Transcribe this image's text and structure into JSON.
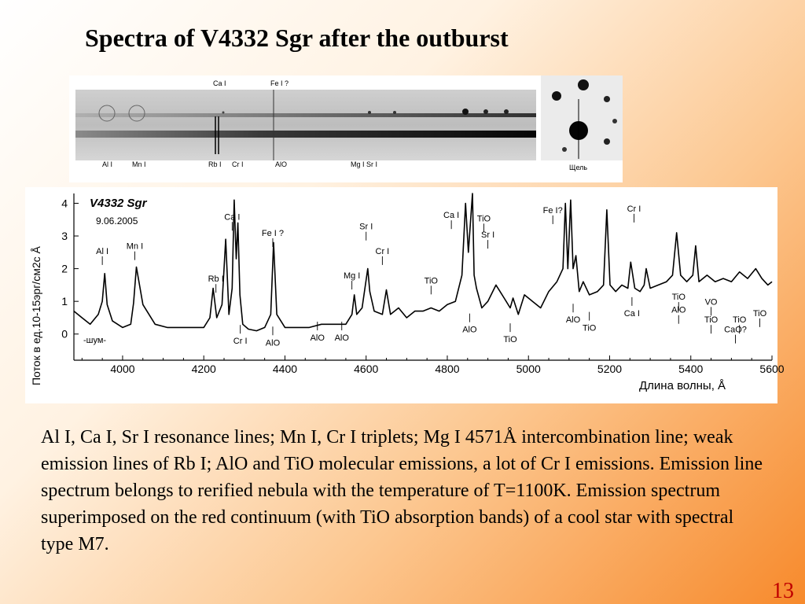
{
  "slide": {
    "title": "Spectra of V4332 Sgr after the outburst",
    "body": "Al I, Ca I, Sr I resonance lines; Mn I, Cr I triplets; Mg I 4571Å intercombination line; weak emission lines of Rb I; AlO and TiO molecular emissions, a lot of Cr I emissions. Emission line spectrum belongs to rerified nebula with the temperature of T=1100K. Emission spectrum superimposed on the red continuum (with TiO absorption bands) of a cool star with spectral type M7.",
    "page_number": "13",
    "accent_color": "#c00000"
  },
  "spectrum_image": {
    "top_labels": [
      "Ca I",
      "Fe I ?"
    ],
    "bottom_labels": [
      "Al I",
      "Mn I",
      "Rb I",
      "Cr I",
      "AlO",
      "Mg I  Sr I"
    ],
    "slit_label": "Щель"
  },
  "chart_data": {
    "type": "line",
    "title": "V4332 Sgr",
    "date": "9.06.2005",
    "xlabel": "Длина волны,  Å",
    "ylabel": "Поток в  ед.10-15эрг/см2с Å",
    "xlim": [
      3880,
      5600
    ],
    "ylim": [
      -0.8,
      4.3
    ],
    "xticks": [
      4000,
      4200,
      4400,
      4600,
      4800,
      5000,
      5200,
      5400,
      5600
    ],
    "yticks": [
      0,
      1,
      2,
      3,
      4
    ],
    "noise_label": "-шум-",
    "series": [
      {
        "x": [
          3880,
          3900,
          3920,
          3940,
          3950,
          3956,
          3962,
          3975,
          4000,
          4020,
          4027,
          4034,
          4050,
          4080,
          4110,
          4140,
          4170,
          4200,
          4215,
          4223,
          4232,
          4245,
          4254,
          4262,
          4270,
          4275,
          4280,
          4284,
          4289,
          4296,
          4310,
          4330,
          4350,
          4365,
          4372,
          4380,
          4400,
          4430,
          4460,
          4490,
          4520,
          4550,
          4565,
          4571,
          4577,
          4590,
          4604,
          4609,
          4620,
          4640,
          4650,
          4660,
          4680,
          4700,
          4720,
          4740,
          4760,
          4780,
          4800,
          4820,
          4836,
          4845,
          4852,
          4862,
          4866,
          4872,
          4885,
          4900,
          4920,
          4940,
          4955,
          4962,
          4975,
          4990,
          5010,
          5030,
          5050,
          5070,
          5085,
          5091,
          5097,
          5104,
          5110,
          5117,
          5125,
          5135,
          5150,
          5170,
          5185,
          5193,
          5201,
          5215,
          5230,
          5245,
          5252,
          5262,
          5275,
          5285,
          5290,
          5300,
          5320,
          5340,
          5355,
          5365,
          5375,
          5390,
          5405,
          5412,
          5420,
          5440,
          5460,
          5480,
          5500,
          5520,
          5540,
          5560,
          5575,
          5590,
          5600
        ],
        "y": [
          0.7,
          0.5,
          0.3,
          0.6,
          1.0,
          1.85,
          0.9,
          0.4,
          0.2,
          0.3,
          0.95,
          2.05,
          0.9,
          0.3,
          0.2,
          0.2,
          0.2,
          0.2,
          0.5,
          1.4,
          0.5,
          0.9,
          2.9,
          0.6,
          1.4,
          4.1,
          2.3,
          3.4,
          1.2,
          0.3,
          0.15,
          0.1,
          0.2,
          0.6,
          2.8,
          0.6,
          0.2,
          0.2,
          0.2,
          0.3,
          0.3,
          0.3,
          0.6,
          1.2,
          0.6,
          0.8,
          2.0,
          1.3,
          0.7,
          0.6,
          1.35,
          0.6,
          0.8,
          0.5,
          0.7,
          0.7,
          0.8,
          0.7,
          0.9,
          1.0,
          1.8,
          4.0,
          2.5,
          4.3,
          1.8,
          1.4,
          0.8,
          1.0,
          1.5,
          1.1,
          0.8,
          1.1,
          0.6,
          1.2,
          1.0,
          0.8,
          1.3,
          1.6,
          2.0,
          4.0,
          2.0,
          4.1,
          2.0,
          2.4,
          1.3,
          1.6,
          1.2,
          1.3,
          1.5,
          3.8,
          1.5,
          1.3,
          1.5,
          1.4,
          2.2,
          1.4,
          1.3,
          1.5,
          2.0,
          1.4,
          1.5,
          1.6,
          1.8,
          3.1,
          1.8,
          1.6,
          1.8,
          2.7,
          1.6,
          1.8,
          1.6,
          1.7,
          1.6,
          1.9,
          1.7,
          2.0,
          1.7,
          1.5,
          1.6
        ]
      }
    ],
    "annotations": [
      "Al I",
      "Mn I",
      "Ca I",
      "Rb I",
      "Cr I",
      "Fe I ?",
      "AlO",
      "AlO",
      "AlO",
      "Mg I",
      "Sr I",
      "Cr I",
      "TiO",
      "Ca I",
      "TiO",
      "Sr I",
      "AlO",
      "TiO",
      "Fe I?",
      "Cr I",
      "AlO",
      "TiO",
      "Ca I",
      "TiO",
      "AlO",
      "VO",
      "TiO",
      "TiO",
      "CaO?",
      "TiO"
    ]
  }
}
